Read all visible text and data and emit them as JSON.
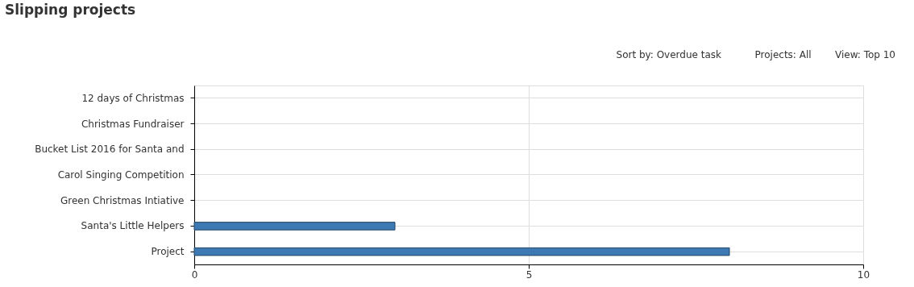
{
  "chart_data": {
    "type": "bar",
    "orientation": "horizontal",
    "title": "Slipping projects",
    "annotations": [
      "Sort by: Overdue task",
      "Projects: All",
      "View: Top 10"
    ],
    "categories": [
      "12 days of Christmas",
      "Christmas Fundraiser",
      "Bucket List 2016 for Santa and",
      "Carol Singing Competition",
      "Green Christmas Intiative",
      "Santa's Little Helpers",
      "Project"
    ],
    "values": [
      0,
      0,
      0,
      0,
      0,
      3,
      8
    ],
    "color": "#3d7ab4",
    "xlim": [
      0,
      10
    ],
    "xticks": [
      0,
      5,
      10
    ],
    "grid": true
  }
}
